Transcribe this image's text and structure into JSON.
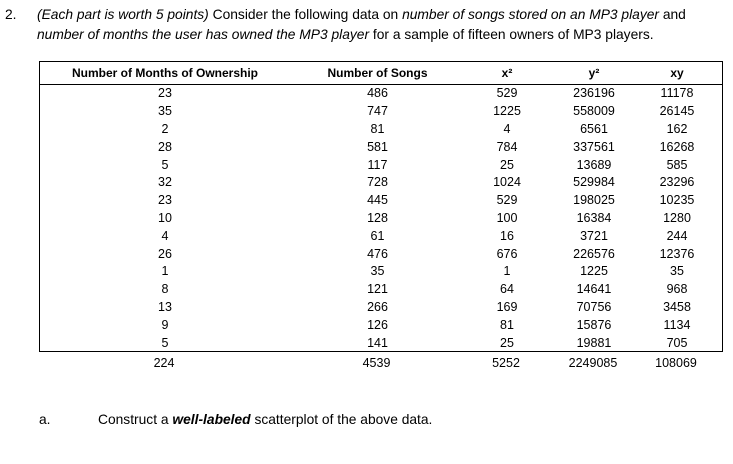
{
  "colors": {
    "background": "#ffffff",
    "text": "#000000",
    "table_border": "#000000"
  },
  "problem": {
    "number": "2.",
    "segments": [
      {
        "text": "(Each part is worth 5 points) ",
        "style": "italic"
      },
      {
        "text": "Consider the following data on ",
        "style": "normal"
      },
      {
        "text": "number of songs stored on an MP3 player",
        "style": "italic"
      },
      {
        "text": " and ",
        "style": "normal"
      },
      {
        "text": "number of months the user has owned the MP3 player",
        "style": "italic"
      },
      {
        "text": " for a sample of fifteen owners of MP3 players.",
        "style": "normal"
      }
    ]
  },
  "table": {
    "columns": [
      "Number of Months of Ownership",
      "Number of Songs",
      "x²",
      "y²",
      "xy"
    ],
    "rows": [
      [
        23,
        486,
        529,
        236196,
        11178
      ],
      [
        35,
        747,
        1225,
        558009,
        26145
      ],
      [
        2,
        81,
        4,
        6561,
        162
      ],
      [
        28,
        581,
        784,
        337561,
        16268
      ],
      [
        5,
        117,
        25,
        13689,
        585
      ],
      [
        32,
        728,
        1024,
        529984,
        23296
      ],
      [
        23,
        445,
        529,
        198025,
        10235
      ],
      [
        10,
        128,
        100,
        16384,
        1280
      ],
      [
        4,
        61,
        16,
        3721,
        244
      ],
      [
        26,
        476,
        676,
        226576,
        12376
      ],
      [
        1,
        35,
        1,
        1225,
        35
      ],
      [
        8,
        121,
        64,
        14641,
        968
      ],
      [
        13,
        266,
        169,
        70756,
        3458
      ],
      [
        9,
        126,
        81,
        15876,
        1134
      ],
      [
        5,
        141,
        25,
        19881,
        705
      ]
    ],
    "totals": [
      224,
      4539,
      5252,
      2249085,
      108069
    ]
  },
  "part_a": {
    "label": "a.",
    "segments": [
      {
        "text": "Construct a ",
        "style": "normal"
      },
      {
        "text": "well-labeled",
        "style": "bold-italic"
      },
      {
        "text": " scatterplot of the above data.",
        "style": "normal"
      }
    ]
  }
}
